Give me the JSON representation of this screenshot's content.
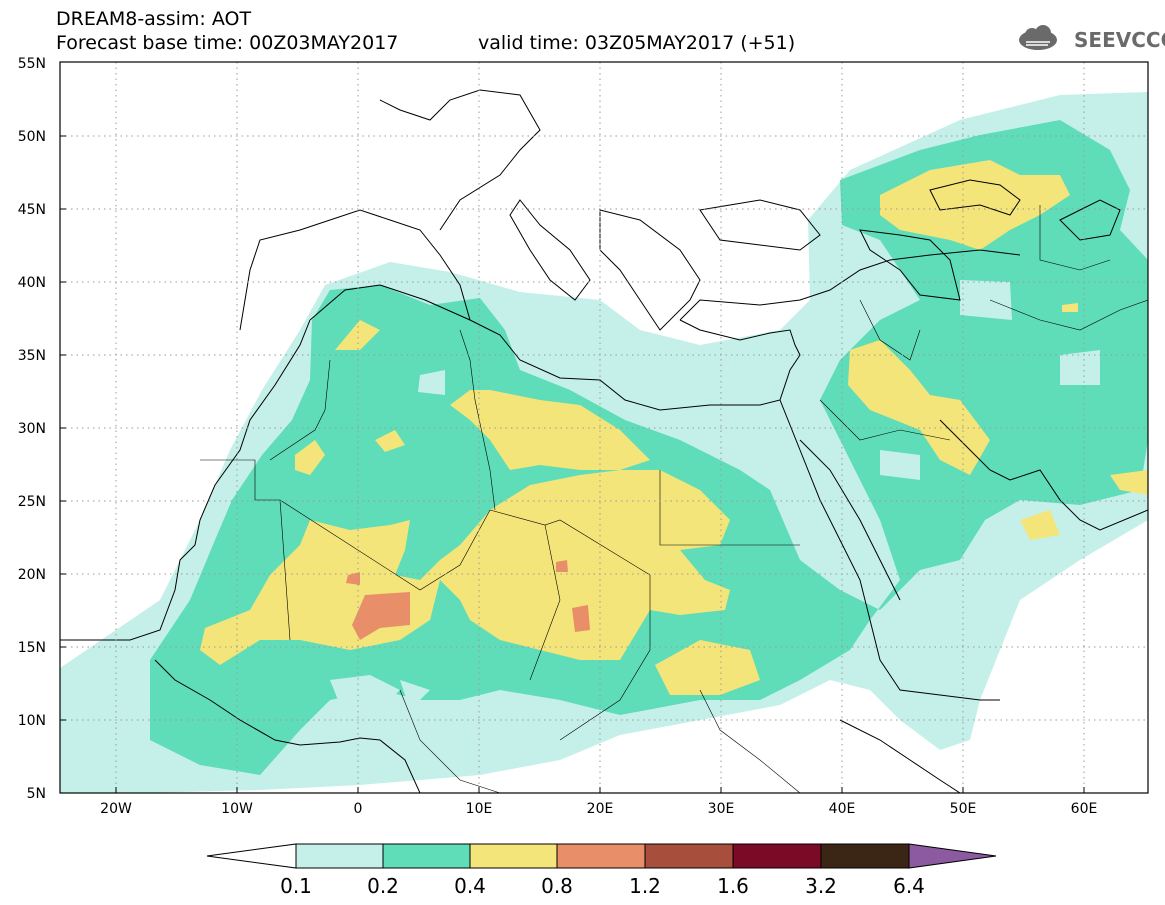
{
  "header": {
    "title": "DREAM8-assim: AOT",
    "base_time": "Forecast base time: 00Z03MAY2017",
    "valid_time": "valid time: 03Z05MAY2017 (+51)"
  },
  "logo": {
    "text": "SEEVCCC",
    "icon": "cloud-icon"
  },
  "map": {
    "lon_range": [
      -25,
      65
    ],
    "lat_range": [
      5,
      55
    ],
    "lat_labels": [
      "5N",
      "10N",
      "15N",
      "20N",
      "25N",
      "30N",
      "35N",
      "40N",
      "45N",
      "50N",
      "55N"
    ],
    "lon_labels": [
      "20W",
      "10W",
      "0",
      "10E",
      "20E",
      "30E",
      "40E",
      "50E",
      "60E"
    ]
  },
  "colorbar": {
    "labels": [
      "0.1",
      "0.2",
      "0.4",
      "0.8",
      "1.2",
      "1.6",
      "3.2",
      "6.4"
    ],
    "colors": [
      "#c4f0e9",
      "#5fdcb8",
      "#f3e57a",
      "#e88f6a",
      "#a84e3d",
      "#7a0a25",
      "#3b2515",
      "#8c5aa0"
    ]
  }
}
